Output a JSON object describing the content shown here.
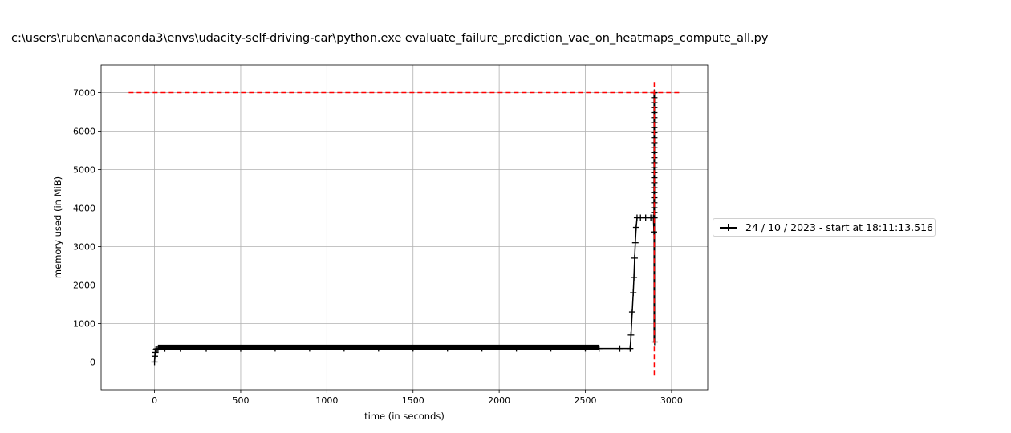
{
  "window": {
    "title": "c:\\users\\ruben\\anaconda3\\envs\\udacity-self-driving-car\\python.exe evaluate_failure_prediction_vae_on_heatmaps_compute_all.py"
  },
  "chart_data": {
    "type": "line",
    "title": "c:\\users\\ruben\\anaconda3\\envs\\udacity-self-driving-car\\python.exe evaluate_failure_prediction_vae_on_heatmaps_compute_all.py",
    "xlabel": "time (in seconds)",
    "ylabel": "memory used (in MiB)",
    "xlim": [
      -310,
      3210
    ],
    "ylim": [
      -720,
      7720
    ],
    "xticks": [
      0,
      500,
      1000,
      1500,
      2000,
      2500,
      3000
    ],
    "yticks": [
      0,
      1000,
      2000,
      3000,
      4000,
      5000,
      6000,
      7000
    ],
    "grid": true,
    "legend_position": "center-right, outside axes",
    "series": [
      {
        "name": "24 / 10 / 2023 - start at 18:11:13.516",
        "color": "#000000",
        "marker": "+",
        "x": [
          0,
          2,
          5,
          8,
          12,
          20,
          60,
          150,
          300,
          500,
          700,
          900,
          1100,
          1300,
          1500,
          1700,
          1900,
          2100,
          2300,
          2500,
          2580,
          2700,
          2760,
          2765,
          2772,
          2778,
          2782,
          2786,
          2790,
          2795,
          2800,
          2820,
          2850,
          2880,
          2895,
          2898,
          2900,
          2901,
          2902
        ],
        "y": [
          0,
          150,
          250,
          320,
          340,
          345,
          350,
          350,
          350,
          350,
          355,
          355,
          355,
          355,
          355,
          355,
          355,
          355,
          355,
          355,
          350,
          350,
          350,
          700,
          1300,
          1800,
          2200,
          2700,
          3100,
          3500,
          3750,
          3750,
          3750,
          3750,
          3750,
          3380,
          7000,
          3750,
          520
        ]
      },
      {
        "name": "",
        "color": "#ff0000",
        "style": "dashed",
        "x": [
          -150,
          3050
        ],
        "y": [
          7000,
          7000
        ]
      },
      {
        "name": "",
        "color": "#ff0000",
        "style": "dashed",
        "x": [
          2900,
          2900
        ],
        "y": [
          -350,
          7350
        ]
      }
    ]
  }
}
